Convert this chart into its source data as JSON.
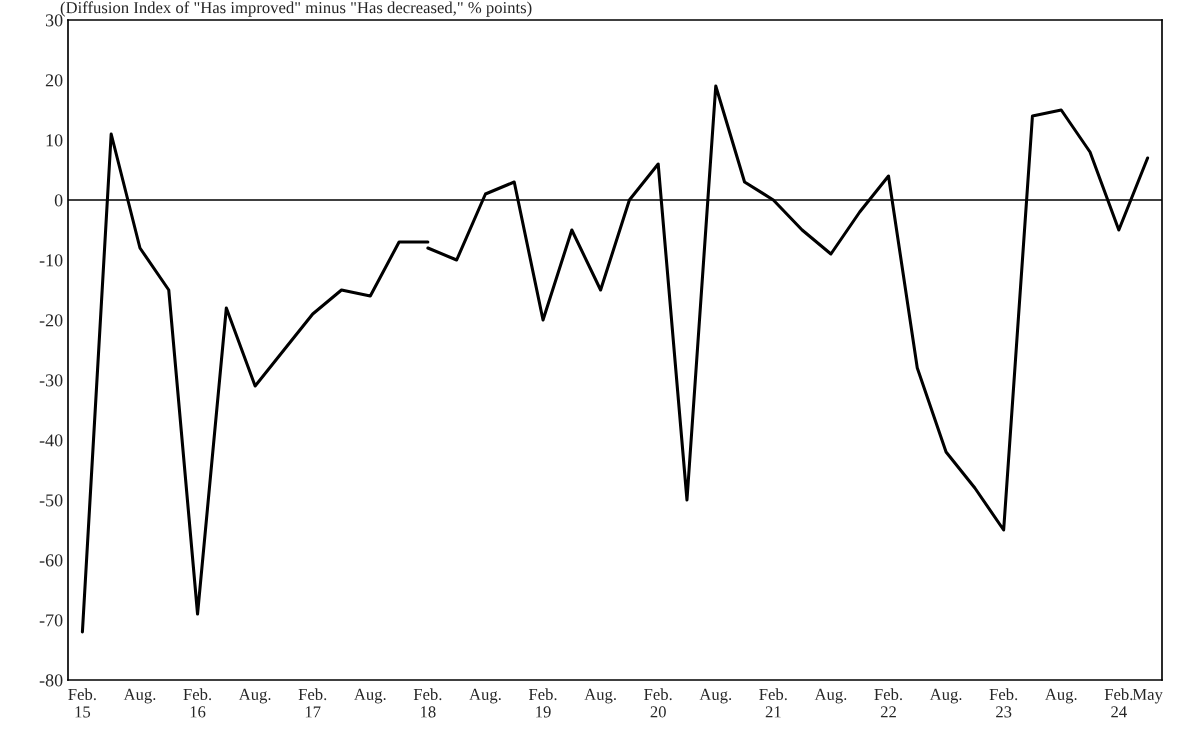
{
  "chart_data": {
    "type": "line",
    "title": "(Diffusion Index of \"Has improved\" minus \"Has decreased,\" % points)",
    "categories": [
      "Feb.\n15",
      null,
      "Aug.",
      null,
      "Feb.\n16",
      null,
      "Aug.",
      null,
      "Feb.\n17",
      null,
      "Aug.",
      null,
      "Feb.\n18",
      null,
      "Aug.",
      null,
      "Feb.\n19",
      null,
      "Aug.",
      null,
      "Feb.\n20",
      null,
      "Aug.",
      null,
      "Feb.\n21",
      null,
      "Aug.",
      null,
      "Feb.\n22",
      null,
      "Aug.",
      null,
      "Feb.\n23",
      null,
      "Aug.",
      null,
      "Feb.\n24",
      "May"
    ],
    "series": [
      {
        "color": "#000000",
        "values": [
          -72,
          11,
          -8,
          -15,
          -69,
          -18,
          -31,
          -25,
          -19,
          -15,
          -16,
          -7,
          -7,
          null,
          null,
          null,
          null,
          null,
          null,
          null,
          null,
          null,
          null,
          null,
          null,
          null,
          null,
          null,
          null,
          null,
          null,
          null,
          null,
          null,
          null,
          null,
          null,
          null
        ]
      },
      {
        "color": "#000000",
        "values": [
          null,
          null,
          null,
          null,
          null,
          null,
          null,
          null,
          null,
          null,
          null,
          null,
          -8,
          -10,
          1,
          3,
          -20,
          -5,
          -15,
          0,
          6,
          -50,
          19,
          3,
          0,
          -5,
          -9,
          -2,
          4,
          -28,
          -42,
          -48,
          -55,
          14,
          15,
          8,
          -5,
          7
        ]
      }
    ],
    "ylim": [
      -80,
      30
    ],
    "yticks": [
      -80,
      -70,
      -60,
      -50,
      -40,
      -30,
      -20,
      -10,
      0,
      10,
      20,
      30
    ],
    "ref_lines": [
      {
        "axis": "y",
        "value": 0,
        "color": "#000000"
      }
    ],
    "grid": false,
    "marker": "none",
    "line_style": "solid"
  }
}
